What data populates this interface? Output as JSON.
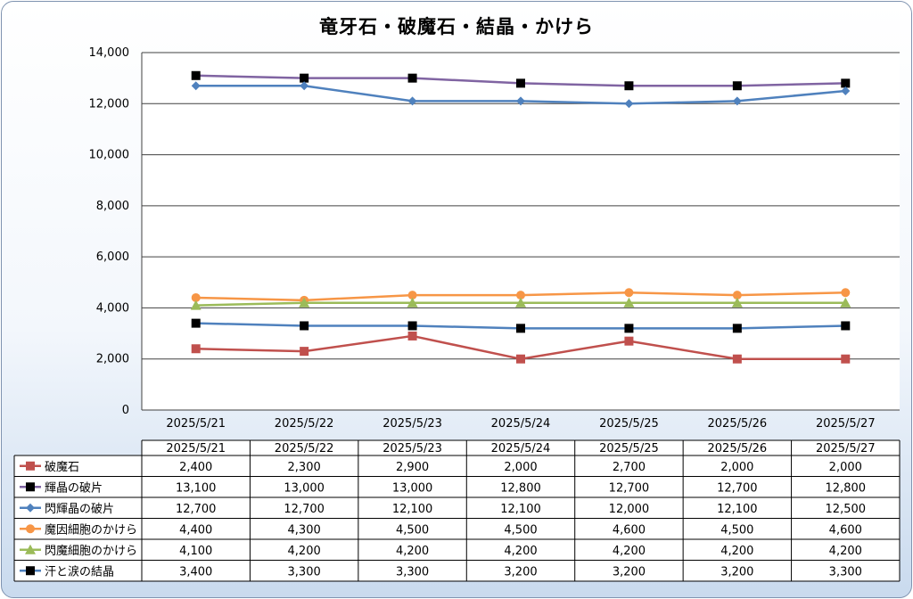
{
  "chart_data": {
    "type": "line",
    "title": "竜牙石・破魔石・結晶・かけら",
    "categories": [
      "2025/5/21",
      "2025/5/22",
      "2025/5/23",
      "2025/5/24",
      "2025/5/25",
      "2025/5/26",
      "2025/5/27"
    ],
    "ylim": [
      0,
      14000
    ],
    "yticks": [
      "0",
      "2,000",
      "4,000",
      "6,000",
      "8,000",
      "10,000",
      "12,000",
      "14,000"
    ],
    "grid": true,
    "legend": "data-table",
    "series": [
      {
        "name": "破魔石",
        "values": [
          2400,
          2300,
          2900,
          2000,
          2700,
          2000,
          2000
        ],
        "labels": [
          "2,400",
          "2,300",
          "2,900",
          "2,000",
          "2,700",
          "2,000",
          "2,000"
        ],
        "color": "#c0504d",
        "marker": "square"
      },
      {
        "name": "輝晶の破片",
        "values": [
          13100,
          13000,
          13000,
          12800,
          12700,
          12700,
          12800
        ],
        "labels": [
          "13,100",
          "13,000",
          "13,000",
          "12,800",
          "12,700",
          "12,700",
          "12,800"
        ],
        "color": "#8064a2",
        "marker": "square-black"
      },
      {
        "name": "閃輝晶の破片",
        "values": [
          12700,
          12700,
          12100,
          12100,
          12000,
          12100,
          12500
        ],
        "labels": [
          "12,700",
          "12,700",
          "12,100",
          "12,100",
          "12,000",
          "12,100",
          "12,500"
        ],
        "color": "#4f81bd",
        "marker": "diamond"
      },
      {
        "name": "魔因細胞のかけら",
        "values": [
          4400,
          4300,
          4500,
          4500,
          4600,
          4500,
          4600
        ],
        "labels": [
          "4,400",
          "4,300",
          "4,500",
          "4,500",
          "4,600",
          "4,500",
          "4,600"
        ],
        "color": "#f79646",
        "marker": "circle"
      },
      {
        "name": "閃魔細胞のかけら",
        "values": [
          4100,
          4200,
          4200,
          4200,
          4200,
          4200,
          4200
        ],
        "labels": [
          "4,100",
          "4,200",
          "4,200",
          "4,200",
          "4,200",
          "4,200",
          "4,200"
        ],
        "color": "#9bbb59",
        "marker": "triangle"
      },
      {
        "name": "汗と涙の結晶",
        "values": [
          3400,
          3300,
          3300,
          3200,
          3200,
          3200,
          3300
        ],
        "labels": [
          "3,400",
          "3,300",
          "3,300",
          "3,200",
          "3,200",
          "3,200",
          "3,300"
        ],
        "color": "#4f81bd",
        "marker": "square-black"
      }
    ]
  }
}
